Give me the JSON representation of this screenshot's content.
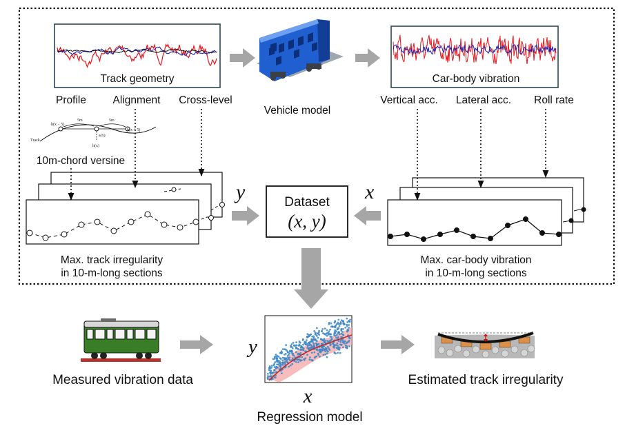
{
  "track_panel": {
    "title": "Track geometry",
    "channels": [
      "Profile",
      "Alignment",
      "Cross-level"
    ],
    "versine_caption": "10m-chord versine",
    "versine_sketch": {
      "left_point": "h(x − 5)",
      "right_point": "h(x + 5)",
      "mid_point": "h(x)",
      "versine": "a(x)",
      "span_left": "5m",
      "span_right": "5m",
      "track": "Track"
    },
    "plot_caption_line1": "Max. track irregularity",
    "plot_caption_line2": "in 10-m-long sections",
    "axis_symbol": "y"
  },
  "vehicle": {
    "label": "Vehicle model"
  },
  "vibration_panel": {
    "title": "Car-body vibration",
    "channels": [
      "Vertical acc.",
      "Lateral acc.",
      "Roll rate"
    ],
    "plot_caption_line1": "Max. car-body vibration",
    "plot_caption_line2": "in 10-m-long sections",
    "axis_symbol": "x"
  },
  "dataset": {
    "title": "Dataset",
    "formula": "(x, y)"
  },
  "bottom": {
    "measured_label": "Measured vibration data",
    "regression_label": "Regression model",
    "regression_x": "x",
    "regression_y": "y",
    "estimated_label": "Estimated track irregularity"
  },
  "colors": {
    "signal_red": "#e8141a",
    "signal_blue": "#1c22b0",
    "arrow_gray": "#a6a6a6",
    "panel_border": "#2c4550",
    "scatter_blue": "#3b86c6",
    "band_pink": "#f4a7a7",
    "train_green": "#3a7d27",
    "rail_red": "#b5332c"
  }
}
